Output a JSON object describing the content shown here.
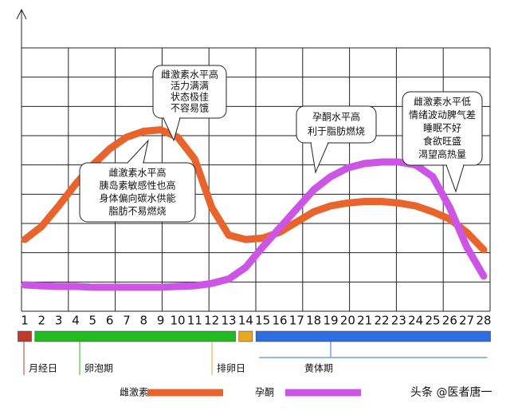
{
  "chart_data": {
    "type": "line",
    "categories": [
      1,
      2,
      3,
      4,
      5,
      6,
      7,
      8,
      9,
      10,
      11,
      12,
      13,
      14,
      15,
      16,
      17,
      18,
      19,
      20,
      21,
      22,
      23,
      24,
      25,
      26,
      27,
      28
    ],
    "series": [
      {
        "name": "雌激素",
        "color": "#e8642c",
        "values": [
          2.45,
          2.9,
          3.6,
          4.35,
          5.0,
          5.55,
          5.95,
          6.15,
          6.2,
          5.95,
          5.2,
          3.55,
          2.6,
          2.45,
          2.5,
          2.7,
          3.05,
          3.4,
          3.6,
          3.7,
          3.75,
          3.75,
          3.7,
          3.6,
          3.4,
          3.15,
          2.7,
          2.1
        ]
      },
      {
        "name": "孕酮",
        "color": "#cc55e6",
        "values": [
          0.9,
          0.87,
          0.85,
          0.85,
          0.82,
          0.82,
          0.82,
          0.82,
          0.82,
          0.85,
          0.87,
          0.95,
          1.1,
          1.5,
          2.2,
          2.85,
          3.5,
          4.15,
          4.6,
          4.9,
          5.05,
          5.1,
          5.1,
          5.0,
          4.6,
          3.55,
          2.2,
          1.2
        ]
      }
    ],
    "ylim": [
      0,
      9
    ],
    "grid": true,
    "phases": [
      {
        "label": "月经日",
        "color": "#c0392b",
        "from": 1,
        "to": 1
      },
      {
        "label": "卵泡期",
        "color": "#22bb22",
        "from": 2,
        "to": 13
      },
      {
        "label": "排卵日",
        "color": "#e8a820",
        "from": 14,
        "to": 14
      },
      {
        "label": "黄体期",
        "color": "#2d6fe0",
        "from": 15,
        "to": 28
      }
    ],
    "annotations": [
      {
        "lines": [
          "雌激素水平高",
          "活力满满",
          "状态极佳",
          "不容易饿"
        ]
      },
      {
        "lines": [
          "雌激素水平高",
          "胰岛素敏感性也高",
          "身体偏向碳水供能",
          "脂肪不易燃烧"
        ]
      },
      {
        "lines": [
          "孕酮水平高",
          "利于脂肪燃烧"
        ]
      },
      {
        "lines": [
          "雌激素水平低",
          "情绪波动脾气差",
          "睡眠不好",
          "食欲旺盛",
          "渴望高热量"
        ]
      }
    ],
    "watermark": "头条 @医者唐一"
  }
}
